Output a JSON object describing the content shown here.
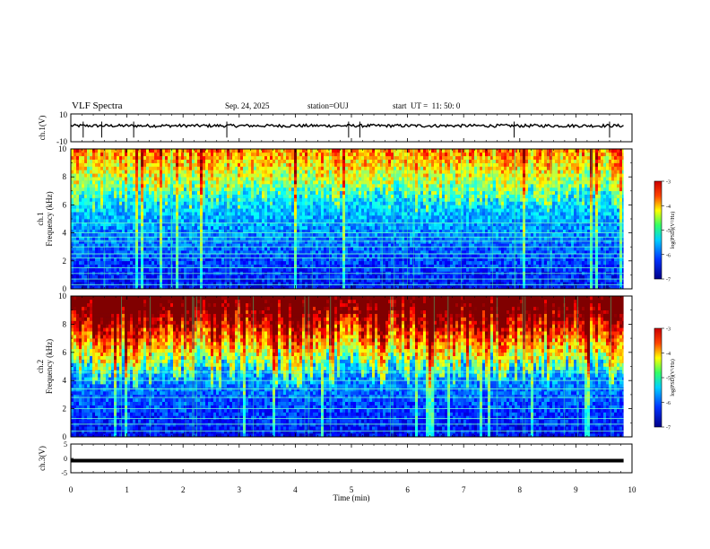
{
  "header": {
    "title": "VLF Spectra",
    "date": "Sep. 24, 2025",
    "station": "station=OUJ",
    "start": "start  UT =  11: 50: 0"
  },
  "chart_data": [
    {
      "type": "line",
      "id": "ch1-waveform",
      "ylabel": "ch.1(V)",
      "ylim": [
        -10,
        10
      ],
      "yticks": [
        "10",
        "-10"
      ],
      "baseline_v": 1.5,
      "spike_times_min": [
        0.22,
        0.55,
        1.12,
        2.78,
        4.95,
        5.15,
        7.9,
        9.6
      ]
    },
    {
      "type": "heatmap",
      "id": "ch1-spectrogram",
      "ylabel": "ch.1",
      "ylabel2": "Frequency (kHz)",
      "ylim": [
        0,
        10
      ],
      "yticks": [
        "0",
        "2",
        "4",
        "6",
        "8",
        "10"
      ],
      "xlim": [
        0,
        9.85
      ],
      "colorbar": {
        "label": "log(PSD)(V²/Hz)",
        "range": [
          -7,
          -3
        ],
        "ticks": [
          "-3",
          "-4",
          "-5",
          "-6",
          "-7"
        ]
      },
      "lines_khz": [
        0.3,
        0.7,
        1.1,
        1.5,
        2.2,
        2.5,
        3.0,
        3.4,
        3.7,
        4.0,
        4.7
      ]
    },
    {
      "type": "heatmap",
      "id": "ch2-spectrogram",
      "ylabel": "ch.2",
      "ylabel2": "Frequency (kHz)",
      "ylim": [
        0,
        10
      ],
      "yticks": [
        "0",
        "2",
        "4",
        "6",
        "8",
        "10"
      ],
      "xlim": [
        0,
        9.85
      ],
      "colorbar": {
        "label": "log(PSD)(V²/Hz)",
        "range": [
          -7,
          -3
        ],
        "ticks": [
          "-3",
          "-4",
          "-5",
          "-6",
          "-7"
        ]
      },
      "lines_khz": [
        0.4,
        0.9,
        1.3,
        2.0,
        2.8,
        3.4,
        4.0,
        4.6
      ]
    },
    {
      "type": "line",
      "id": "ch3-waveform",
      "ylabel": "ch.3(V)",
      "ylim": [
        -5,
        5
      ],
      "yticks": [
        "5",
        "0",
        "-5"
      ],
      "baseline_v": -0.8
    }
  ],
  "xaxis": {
    "label": "Time  (min)",
    "range": [
      0,
      10
    ],
    "ticks": [
      "0",
      "1",
      "2",
      "3",
      "4",
      "5",
      "6",
      "7",
      "8",
      "9",
      "10"
    ]
  }
}
